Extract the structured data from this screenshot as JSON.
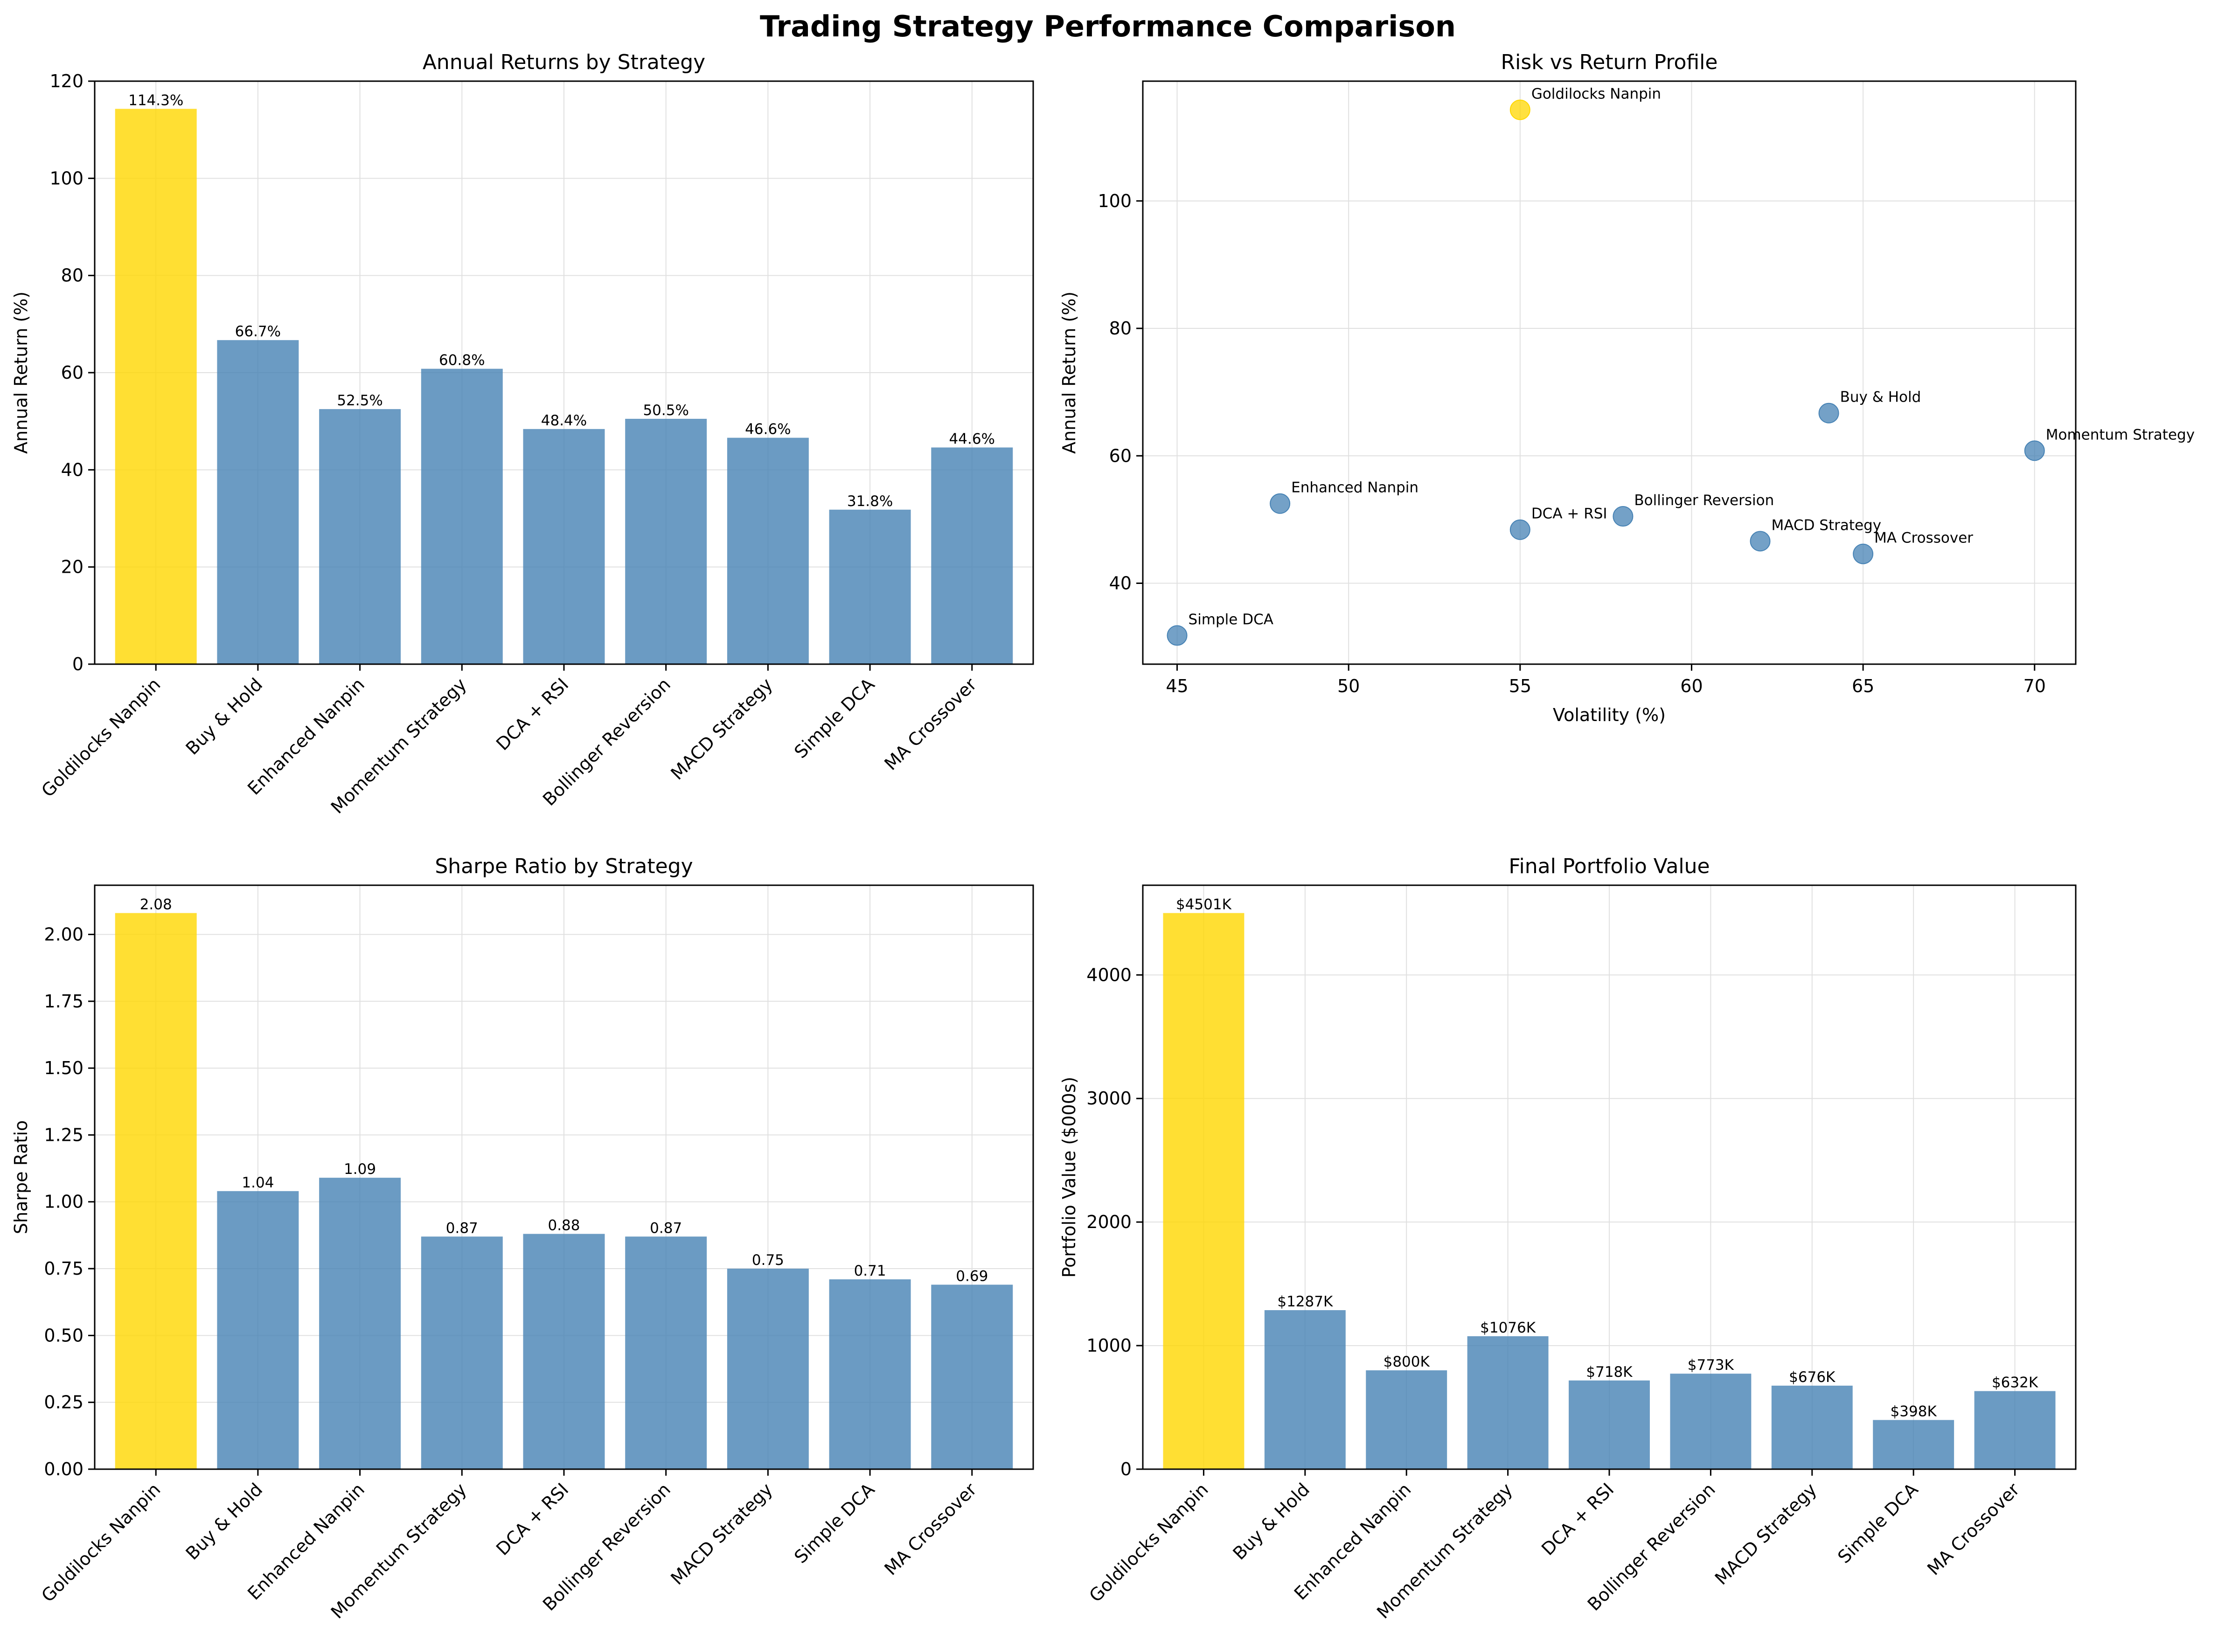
{
  "figure": {
    "title": "Trading Strategy Performance Comparison"
  },
  "colors": {
    "highlight": "#FFD700",
    "bar": "#4682B4",
    "grid": "#e0e0e0",
    "axis": "#000000"
  },
  "chart_data": [
    {
      "type": "bar",
      "title": "Annual Returns by Strategy",
      "xlabel": "",
      "ylabel": "Annual Return (%)",
      "ylim": [
        0,
        120
      ],
      "yticks": [
        0,
        20,
        40,
        60,
        80,
        100,
        120
      ],
      "categories": [
        "Goldilocks Nanpin",
        "Buy & Hold",
        "Enhanced Nanpin",
        "Momentum Strategy",
        "DCA + RSI",
        "Bollinger Reversion",
        "MACD Strategy",
        "Simple DCA",
        "MA Crossover"
      ],
      "values": [
        114.3,
        66.7,
        52.5,
        60.8,
        48.4,
        50.5,
        46.6,
        31.8,
        44.6
      ],
      "labels": [
        "114.3%",
        "66.7%",
        "52.5%",
        "60.8%",
        "48.4%",
        "50.5%",
        "46.6%",
        "31.8%",
        "44.6%"
      ],
      "highlight_index": 0,
      "grid": true
    },
    {
      "type": "scatter",
      "title": "Risk vs Return Profile",
      "xlabel": "Volatility (%)",
      "ylabel": "Annual Return (%)",
      "xlim": [
        44,
        71.2
      ],
      "ylim": [
        27.3,
        118.8
      ],
      "xticks": [
        45,
        50,
        55,
        60,
        65,
        70
      ],
      "yticks": [
        40,
        60,
        80,
        100
      ],
      "points": [
        {
          "name": "Goldilocks Nanpin",
          "x": 55,
          "y": 114.3,
          "highlight": true
        },
        {
          "name": "Buy & Hold",
          "x": 64,
          "y": 66.7
        },
        {
          "name": "Enhanced Nanpin",
          "x": 48,
          "y": 52.5
        },
        {
          "name": "Momentum Strategy",
          "x": 70,
          "y": 60.8
        },
        {
          "name": "DCA + RSI",
          "x": 55,
          "y": 48.4
        },
        {
          "name": "Bollinger Reversion",
          "x": 58,
          "y": 50.5
        },
        {
          "name": "MACD Strategy",
          "x": 62,
          "y": 46.6
        },
        {
          "name": "Simple DCA",
          "x": 45,
          "y": 31.8
        },
        {
          "name": "MA Crossover",
          "x": 65,
          "y": 44.6
        }
      ],
      "grid": true
    },
    {
      "type": "bar",
      "title": "Sharpe Ratio by Strategy",
      "xlabel": "",
      "ylabel": "Sharpe Ratio",
      "ylim": [
        0,
        2.184
      ],
      "yticks": [
        0.0,
        0.25,
        0.5,
        0.75,
        1.0,
        1.25,
        1.5,
        1.75,
        2.0
      ],
      "ytick_labels": [
        "0.00",
        "0.25",
        "0.50",
        "0.75",
        "1.00",
        "1.25",
        "1.50",
        "1.75",
        "2.00"
      ],
      "categories": [
        "Goldilocks Nanpin",
        "Buy & Hold",
        "Enhanced Nanpin",
        "Momentum Strategy",
        "DCA + RSI",
        "Bollinger Reversion",
        "MACD Strategy",
        "Simple DCA",
        "MA Crossover"
      ],
      "values": [
        2.08,
        1.04,
        1.09,
        0.87,
        0.88,
        0.87,
        0.75,
        0.71,
        0.69
      ],
      "labels": [
        "2.08",
        "1.04",
        "1.09",
        "0.87",
        "0.88",
        "0.87",
        "0.75",
        "0.71",
        "0.69"
      ],
      "highlight_index": 0,
      "grid": true
    },
    {
      "type": "bar",
      "title": "Final Portfolio Value",
      "xlabel": "",
      "ylabel": "Portfolio Value ($000s)",
      "ylim": [
        0,
        4726
      ],
      "yticks": [
        0,
        1000,
        2000,
        3000,
        4000
      ],
      "categories": [
        "Goldilocks Nanpin",
        "Buy & Hold",
        "Enhanced Nanpin",
        "Momentum Strategy",
        "DCA + RSI",
        "Bollinger Reversion",
        "MACD Strategy",
        "Simple DCA",
        "MA Crossover"
      ],
      "values": [
        4501,
        1287,
        800,
        1076,
        718,
        773,
        676,
        398,
        632
      ],
      "labels": [
        "$4501K",
        "$1287K",
        "$800K",
        "$1076K",
        "$718K",
        "$773K",
        "$676K",
        "$398K",
        "$632K"
      ],
      "highlight_index": 0,
      "grid": true
    }
  ]
}
